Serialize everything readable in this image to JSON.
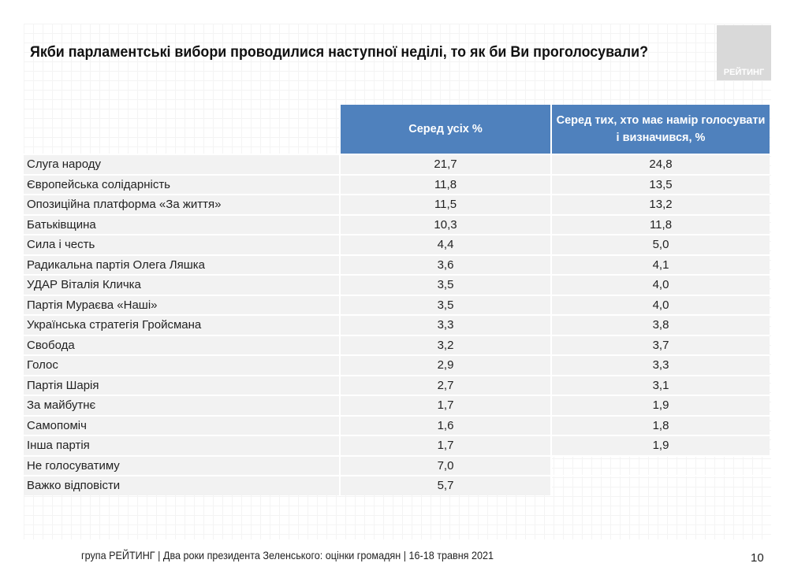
{
  "title": "Якби парламентські вибори проводилися наступної неділі, то як би Ви проголосували?",
  "logo_text": "РЕЙТИНГ",
  "table": {
    "headers": [
      "Серед усіх %",
      "Серед тих, хто має намір голосувати і визначився, %"
    ],
    "rows": [
      {
        "label": "Слуга народу",
        "all": "21,7",
        "decided": "24,8"
      },
      {
        "label": "Європейська солідарність",
        "all": "11,8",
        "decided": "13,5"
      },
      {
        "label": "Опозиційна платформа «За життя»",
        "all": "11,5",
        "decided": "13,2"
      },
      {
        "label": "Батьківщина",
        "all": "10,3",
        "decided": "11,8"
      },
      {
        "label": "Сила і честь",
        "all": "4,4",
        "decided": "5,0"
      },
      {
        "label": "Радикальна партія Олега Ляшка",
        "all": "3,6",
        "decided": "4,1"
      },
      {
        "label": "УДАР Віталія Кличка",
        "all": "3,5",
        "decided": "4,0"
      },
      {
        "label": "Партія Мураєва «Наші»",
        "all": "3,5",
        "decided": "4,0"
      },
      {
        "label": "Українська стратегія Гройсмана",
        "all": "3,3",
        "decided": "3,8"
      },
      {
        "label": "Свобода",
        "all": "3,2",
        "decided": "3,7"
      },
      {
        "label": "Голос",
        "all": "2,9",
        "decided": "3,3"
      },
      {
        "label": "Партія Шарія",
        "all": "2,7",
        "decided": "3,1"
      },
      {
        "label": "За майбутнє",
        "all": "1,7",
        "decided": "1,9"
      },
      {
        "label": "Самопоміч",
        "all": "1,6",
        "decided": "1,8"
      },
      {
        "label": "Інша партія",
        "all": "1,7",
        "decided": "1,9"
      },
      {
        "label": "Не голосуватиму",
        "all": "7,0",
        "decided": null
      },
      {
        "label": "Важко відповісти",
        "all": "5,7",
        "decided": null
      }
    ]
  },
  "footer": "група РЕЙТИНГ | Два роки президента Зеленського: оцінки громадян  | 16-18 травня 2021",
  "page_number": "10",
  "colors": {
    "header_bg": "#4f81bd",
    "row_bg": "#f2f2f2",
    "logo_bg": "#d9d9d9"
  }
}
